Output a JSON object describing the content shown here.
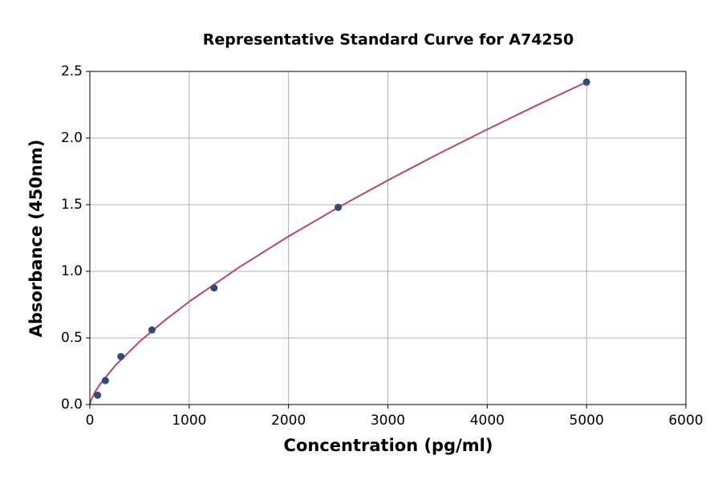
{
  "chart_data": {
    "type": "scatter",
    "title": "Representative Standard Curve for A74250",
    "xlabel": "Concentration (pg/ml)",
    "ylabel": "Absorbance (450nm)",
    "xlim": [
      0,
      6000
    ],
    "xticks": [
      0,
      1000,
      2000,
      3000,
      4000,
      5000,
      6000
    ],
    "ylim": [
      0,
      2.5
    ],
    "yticks": [
      {
        "value": 0,
        "label": "0.0"
      },
      0.5,
      {
        "value": 1,
        "label": "1.0"
      },
      1.5,
      {
        "value": 2,
        "label": "2.0"
      },
      2.5
    ],
    "grid": true,
    "series": [
      {
        "type": "line",
        "color": "#b5456e",
        "x": [
          0,
          10,
          50,
          100,
          250,
          500,
          750,
          1000,
          1500,
          2000,
          2500,
          3000,
          3500,
          4000,
          4500,
          5000
        ],
        "values": [
          0,
          0.029,
          0.092,
          0.15,
          0.288,
          0.472,
          0.629,
          0.772,
          1.029,
          1.262,
          1.479,
          1.683,
          1.878,
          2.065,
          2.246,
          2.42
        ]
      },
      {
        "type": "scatter",
        "color": "#2f4b7c",
        "x": [
          78.125,
          156.25,
          312.5,
          625,
          1250,
          2500,
          5000
        ],
        "values": [
          0.07,
          0.18,
          0.36,
          0.56,
          0.875,
          1.48,
          2.42
        ]
      }
    ]
  }
}
